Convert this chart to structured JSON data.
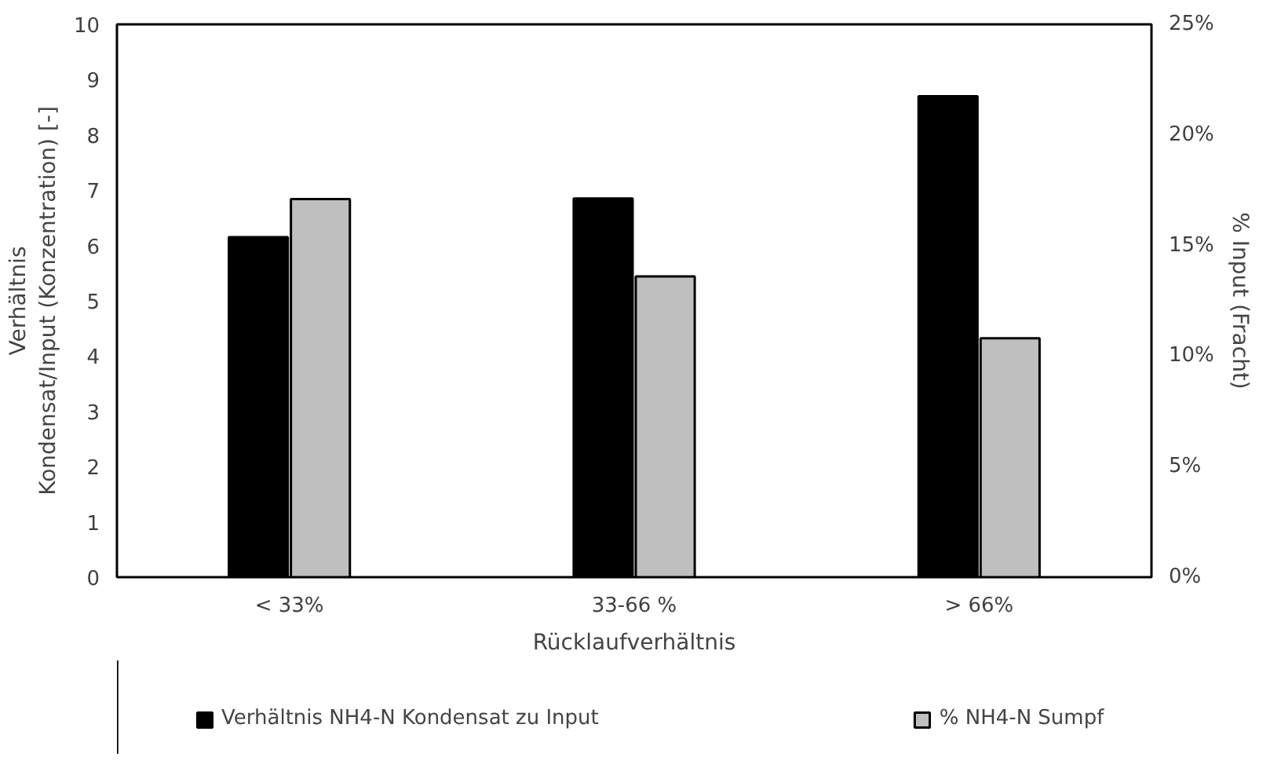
{
  "chart_data": {
    "type": "bar",
    "categories": [
      "< 33%",
      "33-66 %",
      "> 66%"
    ],
    "xlabel": "Rücklaufverhältnis",
    "ylabel": "Verhältnis\nKondensat/Input (Konzentration) [-]",
    "y2label": "% Input (Fracht)",
    "series": [
      {
        "name": "Verhältnis NH4-N Kondensat zu Input",
        "color": "#000000",
        "values": [
          6.15,
          6.85,
          8.7
        ]
      },
      {
        "name": "% NH4-N Sumpf",
        "color": "#bfbfbf",
        "values": [
          17.1,
          13.6,
          10.8
        ],
        "axis": "y2"
      }
    ],
    "ylim": [
      0,
      10
    ],
    "yticks": [
      0,
      1,
      2,
      3,
      4,
      5,
      6,
      7,
      8,
      9,
      10
    ],
    "y2lim": [
      0,
      25
    ],
    "y2ticks": [
      {
        "value": 0,
        "label": "0%"
      },
      {
        "value": 5,
        "label": "5%"
      },
      {
        "value": 10,
        "label": "10%"
      },
      {
        "value": 15,
        "label": "15%"
      },
      {
        "value": 20,
        "label": "20%"
      },
      {
        "value": 25,
        "label": "25%"
      }
    ],
    "grid": false,
    "legend": "bottom"
  }
}
